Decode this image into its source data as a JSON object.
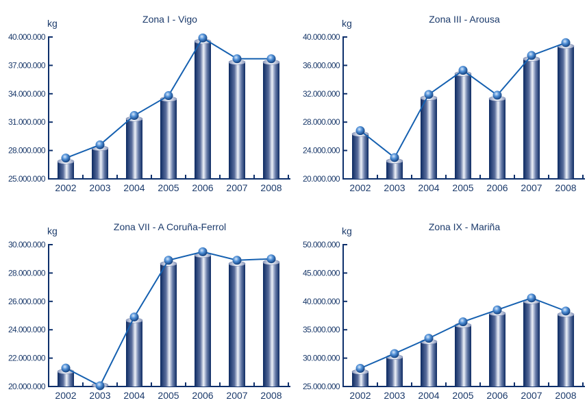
{
  "chart_data": [
    {
      "type": "bar+line",
      "title": "Zona I - Vigo",
      "ylabel": "kg",
      "categories": [
        "2002",
        "2003",
        "2004",
        "2005",
        "2006",
        "2007",
        "2008"
      ],
      "values": [
        27200000,
        28600000,
        31700000,
        33800000,
        39900000,
        37700000,
        37700000
      ],
      "ylim": [
        25000000,
        40000000
      ],
      "yticks": [
        25000000,
        28000000,
        31000000,
        34000000,
        37000000,
        40000000
      ],
      "ytick_labels": [
        "25.000.000",
        "28.000.000",
        "31.000.000",
        "34.000.000",
        "37.000.000",
        "40.000.000"
      ]
    },
    {
      "type": "bar+line",
      "title": "Zona III - Arousa",
      "ylabel": "kg",
      "categories": [
        "2002",
        "2003",
        "2004",
        "2005",
        "2006",
        "2007",
        "2008"
      ],
      "values": [
        26800000,
        23000000,
        31900000,
        35300000,
        31800000,
        37400000,
        39200000
      ],
      "ylim": [
        20000000,
        40000000
      ],
      "yticks": [
        20000000,
        24000000,
        28000000,
        32000000,
        36000000,
        40000000
      ],
      "ytick_labels": [
        "20.000.000",
        "24.000.000",
        "28.000.000",
        "32.000.000",
        "36.000.000",
        "40.000.000"
      ]
    },
    {
      "type": "bar+line",
      "title": "Zona VII - A Coruña-Ferrol",
      "ylabel": "kg",
      "categories": [
        "2002",
        "2003",
        "2004",
        "2005",
        "2006",
        "2007",
        "2008"
      ],
      "values": [
        21300000,
        20050000,
        24900000,
        28900000,
        29500000,
        28900000,
        29000000
      ],
      "ylim": [
        20000000,
        30000000
      ],
      "yticks": [
        20000000,
        22000000,
        24000000,
        26000000,
        28000000,
        30000000
      ],
      "ytick_labels": [
        "20.000.000",
        "22.000.000",
        "24.000.000",
        "26.000.000",
        "28.000.000",
        "30.000.000"
      ]
    },
    {
      "type": "bar+line",
      "title": "Zona IX - Mariña",
      "ylabel": "kg",
      "categories": [
        "2002",
        "2003",
        "2004",
        "2005",
        "2006",
        "2007",
        "2008"
      ],
      "values": [
        28200000,
        30800000,
        33500000,
        36400000,
        38500000,
        40600000,
        38300000
      ],
      "ylim": [
        25000000,
        50000000
      ],
      "yticks": [
        25000000,
        30000000,
        35000000,
        40000000,
        45000000,
        50000000
      ],
      "ytick_labels": [
        "25.000.000",
        "30.000.000",
        "35.000.000",
        "40.000.000",
        "45.000.000",
        "50.000.000"
      ]
    }
  ],
  "colors": {
    "axis": "#0d2f6b",
    "line": "#1560b0",
    "bar_dark": "#0c2a62",
    "bar_light": "#eef2f9",
    "text": "#1b3a6b"
  }
}
